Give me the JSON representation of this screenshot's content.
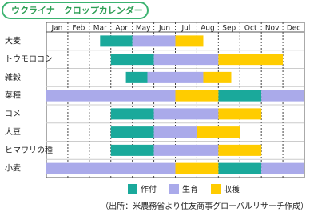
{
  "chart_data": {
    "type": "gantt",
    "title": "ウクライナ　クロップカレンダー",
    "categories": [
      "Jan",
      "Feb",
      "Mar",
      "Apr",
      "May",
      "Jun",
      "Jul",
      "Aug",
      "Sep",
      "Oct",
      "Nov",
      "Dec"
    ],
    "rows": [
      "大麦",
      "トウモロコシ",
      "雑穀",
      "菜種",
      "コメ",
      "大豆",
      "ヒマワリの種",
      "小麦"
    ],
    "xlim": [
      0,
      12
    ],
    "series": [
      {
        "name": "作付",
        "color": "#1aa99b",
        "values": [
          [
            [
              2.5,
              4
            ]
          ],
          [
            [
              3,
              5
            ]
          ],
          [
            [
              3.7,
              4.7
            ]
          ],
          [
            [
              8,
              10
            ]
          ],
          [
            [
              3,
              5
            ]
          ],
          [
            [
              3,
              5
            ]
          ],
          [
            [
              3,
              5
            ]
          ],
          [
            [
              8,
              10
            ]
          ]
        ]
      },
      {
        "name": "生育",
        "color": "#aaaaea",
        "values": [
          [
            [
              4,
              6
            ]
          ],
          [
            [
              5,
              8
            ]
          ],
          [
            [
              4.7,
              7.3
            ]
          ],
          [
            [
              0,
              6
            ],
            [
              10,
              12
            ]
          ],
          [
            [
              5,
              8
            ]
          ],
          [
            [
              5,
              7
            ]
          ],
          [
            [
              5,
              8
            ]
          ],
          [
            [
              0,
              6
            ],
            [
              10,
              12
            ]
          ]
        ]
      },
      {
        "name": "収穫",
        "color": "#ffcc00",
        "values": [
          [
            [
              6,
              7.3
            ]
          ],
          [
            [
              8,
              11
            ]
          ],
          [
            [
              7.3,
              8.6
            ]
          ],
          [
            [
              6,
              8
            ]
          ],
          [
            [
              8,
              10
            ]
          ],
          [
            [
              7,
              9
            ]
          ],
          [
            [
              8,
              10
            ]
          ],
          [
            [
              6,
              8
            ]
          ]
        ]
      }
    ],
    "note": "（出所：米農務省より住友商事グローバルリサーチ作成）"
  }
}
